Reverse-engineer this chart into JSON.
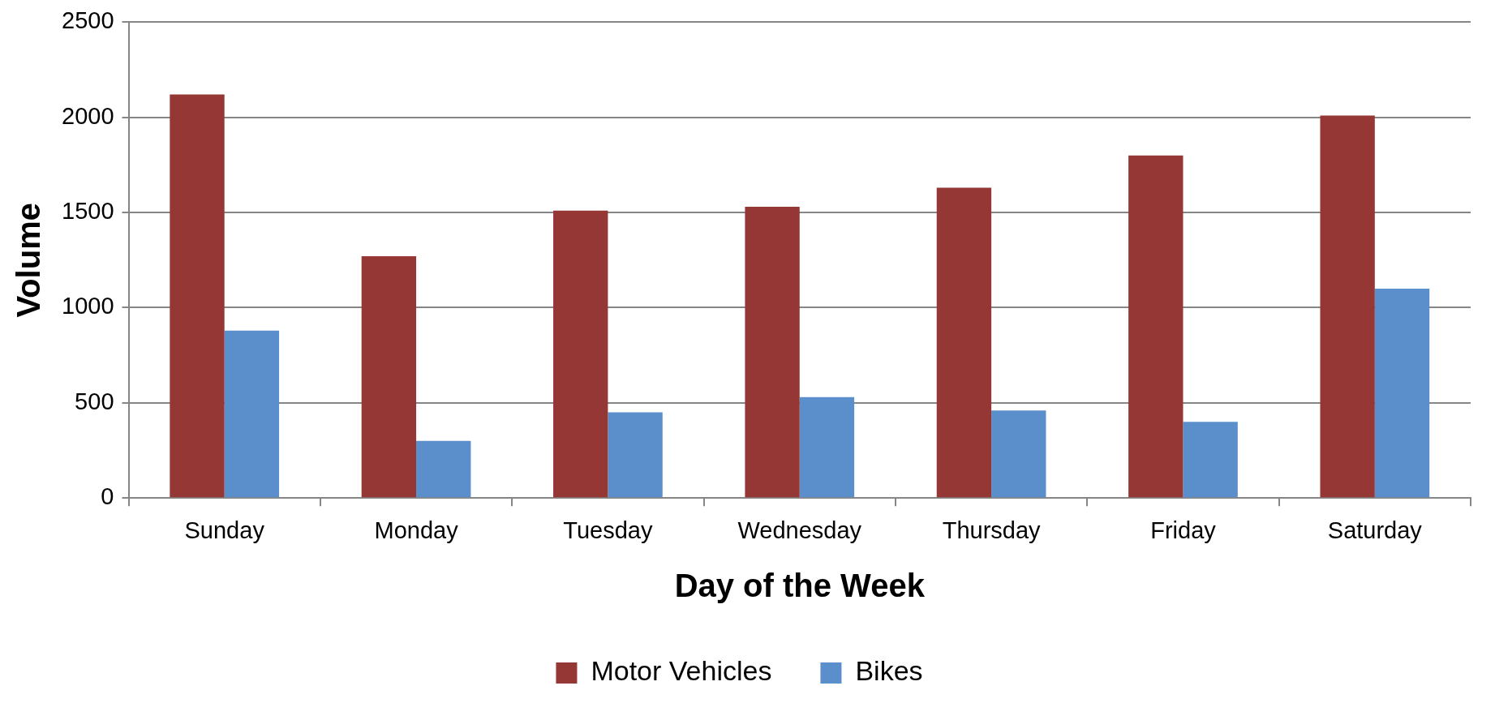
{
  "chart_data": {
    "type": "bar",
    "xlabel": "Day of the Week",
    "ylabel": "Volume",
    "categories": [
      "Sunday",
      "Monday",
      "Tuesday",
      "Wednesday",
      "Thursday",
      "Friday",
      "Saturday"
    ],
    "series": [
      {
        "name": "Motor Vehicles",
        "color": "#953735",
        "values": [
          2120,
          1270,
          1510,
          1530,
          1630,
          1800,
          2010
        ]
      },
      {
        "name": "Bikes",
        "color": "#5b8fcb",
        "values": [
          880,
          300,
          450,
          530,
          460,
          400,
          1100
        ]
      }
    ],
    "ylim": [
      0,
      2500
    ],
    "yticks": [
      0,
      500,
      1000,
      1500,
      2000,
      2500
    ],
    "grid": "y",
    "legend": "bottom"
  }
}
